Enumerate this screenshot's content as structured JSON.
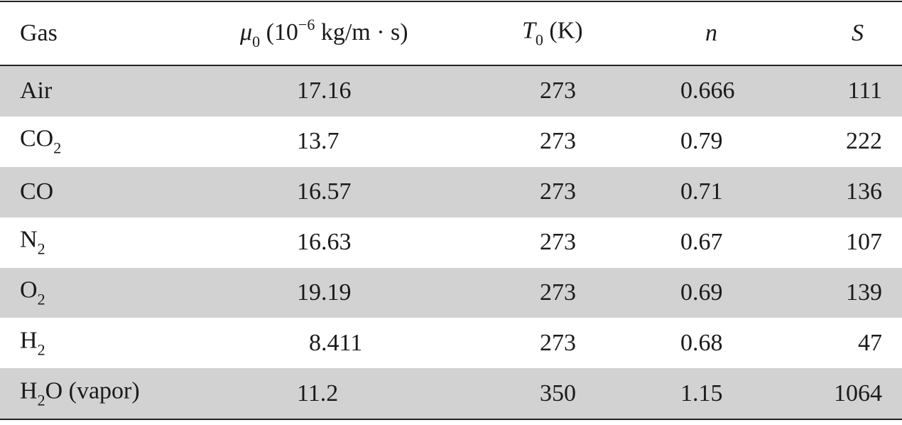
{
  "table": {
    "header": [
      [
        {
          "text": "Gas"
        }
      ],
      [
        {
          "text": "μ",
          "style": "italic"
        },
        {
          "text": "0",
          "style": "sub"
        },
        {
          "text": " (10"
        },
        {
          "text": "−6",
          "style": "sup"
        },
        {
          "text": " kg/m · s)"
        }
      ],
      [
        {
          "text": "T",
          "style": "italic"
        },
        {
          "text": "0",
          "style": "sub"
        },
        {
          "text": " (K)"
        }
      ],
      [
        {
          "text": "n",
          "style": "italic"
        }
      ],
      [
        {
          "text": "S",
          "style": "italic"
        }
      ]
    ],
    "rows": [
      [
        [
          {
            "text": "Air"
          }
        ],
        "17.16",
        "273",
        "0.666",
        "111"
      ],
      [
        [
          {
            "text": "CO"
          },
          {
            "text": "2",
            "style": "sub"
          }
        ],
        "13.7",
        "273",
        "0.79",
        "222"
      ],
      [
        [
          {
            "text": "CO"
          }
        ],
        "16.57",
        "273",
        "0.71",
        "136"
      ],
      [
        [
          {
            "text": "N"
          },
          {
            "text": "2",
            "style": "sub"
          }
        ],
        "16.63",
        "273",
        "0.67",
        "107"
      ],
      [
        [
          {
            "text": "O"
          },
          {
            "text": "2",
            "style": "sub"
          }
        ],
        "19.19",
        "273",
        "0.69",
        "139"
      ],
      [
        [
          {
            "text": "H"
          },
          {
            "text": "2",
            "style": "sub"
          }
        ],
        "8.411",
        "273",
        "0.68",
        "47"
      ],
      [
        [
          {
            "text": "H"
          },
          {
            "text": "2",
            "style": "sub"
          },
          {
            "text": "O (vapor)"
          }
        ],
        "11.2",
        "350",
        "1.15",
        "1064"
      ]
    ]
  }
}
